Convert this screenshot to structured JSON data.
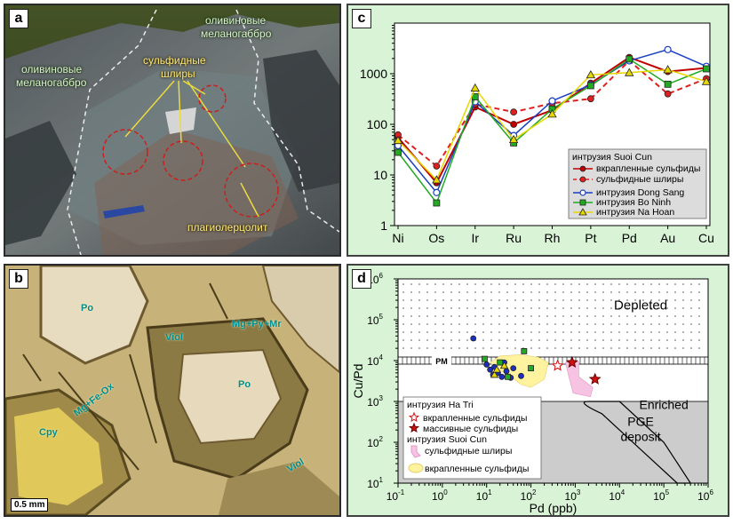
{
  "panel_a": {
    "letter": "a",
    "labels": {
      "olivine_top_line1": "оливиновые",
      "olivine_top_line2": "меланогаббро",
      "olivine_left_line1": "оливиновые",
      "olivine_left_line2": "меланогаббро",
      "sulfide_line1": "сульфидные",
      "sulfide_line2": "шлиры",
      "plagio": "плагиолерцолит"
    }
  },
  "panel_b": {
    "letter": "b",
    "labels": {
      "po1": "Po",
      "viol1": "Viol",
      "mgpy": "Mg+Py+Mr",
      "po2": "Po",
      "mgfe": "Mg+Fe-Ox",
      "cpy": "Cpy",
      "viol2": "Viol"
    },
    "scale": "0.5 mm"
  },
  "chart_data": [
    {
      "panel": "c",
      "type": "line",
      "y_scale": "log",
      "ylim": [
        1,
        10000
      ],
      "y_ticks": [
        "1",
        "10",
        "100",
        "1000"
      ],
      "categories": [
        "Ni",
        "Os",
        "Ir",
        "Ru",
        "Rh",
        "Pt",
        "Pd",
        "Au",
        "Cu"
      ],
      "legend_title": "интрузия Suoi Cun",
      "series": [
        {
          "name": "вкрапленные сульфиды",
          "color": "#c00000",
          "marker": "circle-filled",
          "dash": false,
          "values": [
            55,
            7,
            220,
            100,
            190,
            650,
            2100,
            1100,
            1300
          ]
        },
        {
          "name": "сульфидные шлиры",
          "color": "#e02020",
          "marker": "circle-filled",
          "dash": true,
          "values": [
            62,
            15,
            250,
            175,
            260,
            320,
            1800,
            400,
            800
          ]
        },
        {
          "name": "интрузия Dong Sang",
          "color": "#1a3fbf",
          "marker": "circle-open",
          "dash": false,
          "values": [
            38,
            4.5,
            280,
            60,
            290,
            600,
            1800,
            3000,
            1400
          ]
        },
        {
          "name": "интрузия Bo Ninh",
          "color": "#22aa22",
          "marker": "square",
          "dash": false,
          "values": [
            28,
            2.8,
            350,
            43,
            200,
            580,
            1950,
            620,
            1250
          ]
        },
        {
          "name": "интрузия Na Hoan",
          "color": "#e6d800",
          "marker": "triangle",
          "dash": false,
          "values": [
            48,
            8,
            520,
            50,
            160,
            950,
            1050,
            1200,
            700
          ]
        }
      ]
    },
    {
      "panel": "d",
      "type": "scatter",
      "x_scale": "log",
      "y_scale": "log",
      "xlim": [
        0.1,
        1000000
      ],
      "ylim": [
        10,
        1000000
      ],
      "xlabel": "Pd (ppb)",
      "ylabel": "Cu/Pd",
      "x_tick_exps": [
        "-1",
        "0",
        "1",
        "2",
        "3",
        "4",
        "5",
        "6"
      ],
      "y_tick_exps": [
        "1",
        "2",
        "3",
        "4",
        "5",
        "6"
      ],
      "tick_base": "10",
      "region_labels": {
        "depleted": "Depleted",
        "enriched": "Enriched",
        "pm": "PM",
        "deposit_line1": "PGE",
        "deposit_line2": "deposit"
      },
      "pm_cu_pd": 10000,
      "enriched_below_cu_pd": 1000,
      "series": [
        {
          "name": "интрузия Dong Sang",
          "marker": "circle-filled",
          "color": "#1a2fbf",
          "x": [
            5,
            10,
            12,
            14,
            18,
            22,
            28,
            35,
            40,
            60,
            25,
            15
          ],
          "y": [
            35000,
            8000,
            6000,
            4500,
            5000,
            4000,
            5500,
            3800,
            6500,
            4200,
            9000,
            7000
          ]
        },
        {
          "name": "интрузия Bo Ninh",
          "marker": "square",
          "color": "#22aa22",
          "x": [
            9,
            20,
            30,
            70,
            100
          ],
          "y": [
            11000,
            9000,
            4000,
            17000,
            6500
          ]
        },
        {
          "name": "интрузия Na Hoan",
          "marker": "triangle",
          "color": "#e6d800",
          "x": [
            15,
            17,
            25
          ],
          "y": [
            4500,
            6000,
            7500
          ]
        }
      ],
      "legend": {
        "group1_title": "интрузия Ha Tri",
        "ha_tri_disseminated": "вкрапленные сульфиды",
        "ha_tri_massive": "массивные сульфиды",
        "group2_title": "интрузия Suoi Cun",
        "suoi_cun_schlieren": "сульфидные шлиры",
        "suoi_cun_disseminated": "вкрапленные сульфиды"
      },
      "ha_tri_disseminated": {
        "x": [
          400
        ],
        "y": [
          7500
        ]
      },
      "ha_tri_massive": {
        "x": [
          850,
          2800
        ],
        "y": [
          9000,
          3500
        ]
      },
      "colors": {
        "yellow_field": "#fff3a0",
        "pink_field": "#f7c3e3",
        "gray_field": "#cccccc",
        "star_red": "#d01010"
      }
    }
  ]
}
